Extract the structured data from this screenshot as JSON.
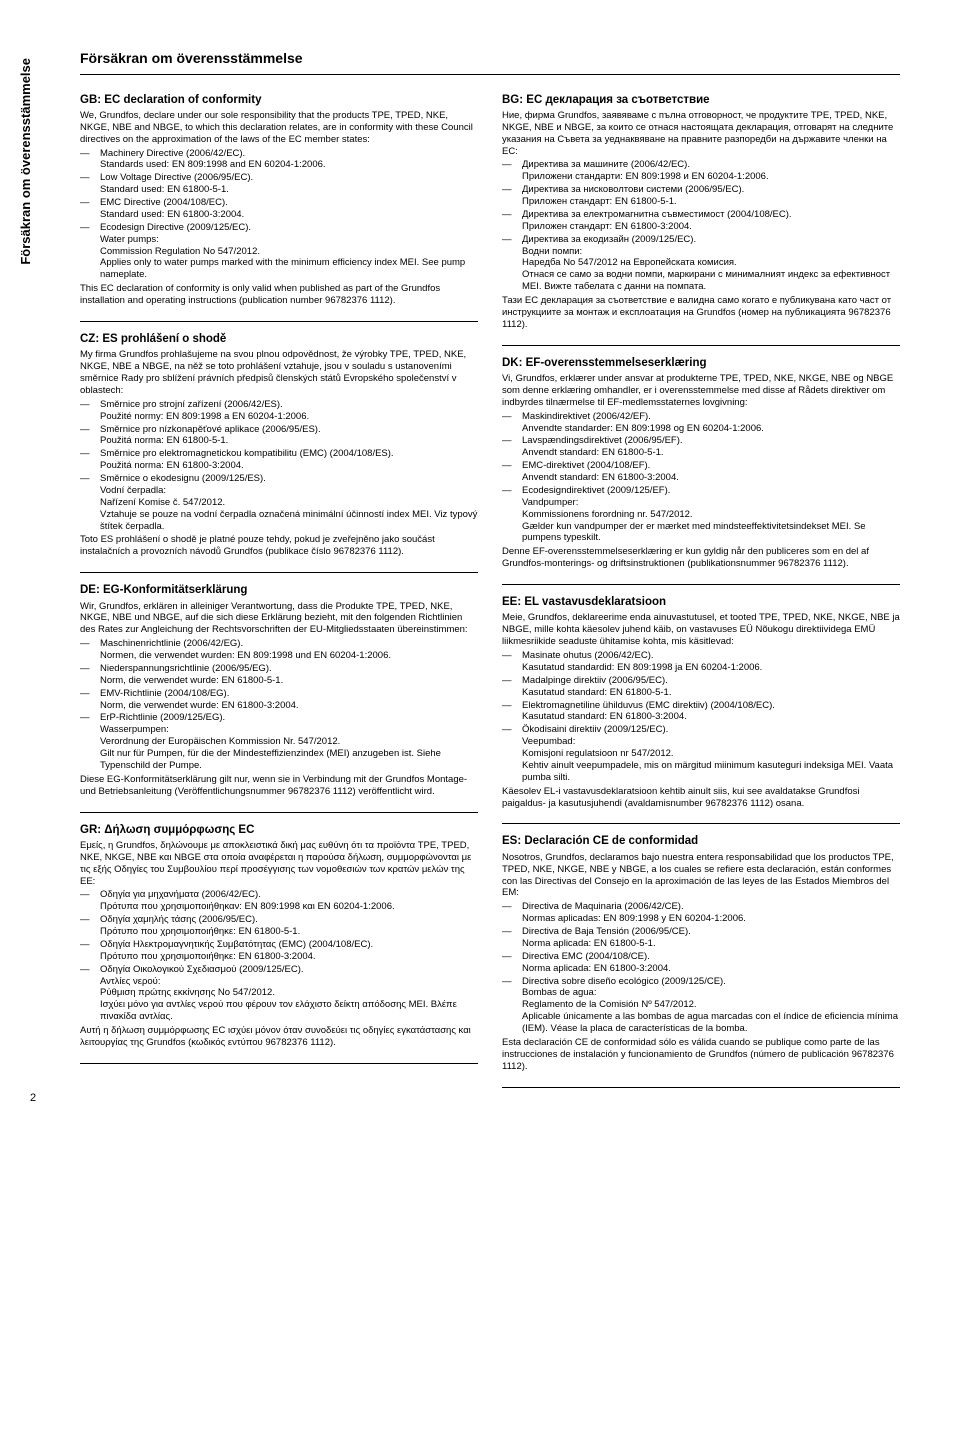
{
  "sidetab": "Försäkran om överensstämmelse",
  "page_title": "Försäkran om överensstämmelse",
  "page_number": "2",
  "left": [
    {
      "title": "GB: EC declaration of conformity",
      "intro": "We, Grundfos, declare under our sole responsibility that the products TPE, TPED, NKE, NKGE, NBE and NBGE, to which this declaration relates, are in conformity with these Council directives on the approximation of the laws of the EC member states:",
      "items": [
        {
          "main": "Machinery Directive (2006/42/EC).",
          "sub": "Standards used: EN 809:1998 and EN 60204-1:2006."
        },
        {
          "main": "Low Voltage Directive (2006/95/EC).",
          "sub": "Standard used: EN 61800-5-1."
        },
        {
          "main": "EMC Directive (2004/108/EC).",
          "sub": "Standard used: EN 61800-3:2004."
        },
        {
          "main": "Ecodesign Directive (2009/125/EC).",
          "sub": "Water pumps:\nCommission Regulation No 547/2012.\nApplies only to water pumps marked with the minimum efficiency index MEI. See pump nameplate."
        }
      ],
      "outro": "This EC declaration of conformity is only valid when published as part of the Grundfos installation and operating instructions (publication number 96782376 1112)."
    },
    {
      "title": "CZ: ES prohlášení o shodě",
      "intro": "My firma Grundfos prohlašujeme na svou plnou odpovědnost, že výrobky TPE, TPED, NKE, NKGE, NBE a NBGE, na něž se toto prohlášení vztahuje, jsou v souladu s ustanoveními směrnice Rady pro sblížení právních předpisů členských států Evropského společenství v oblastech:",
      "items": [
        {
          "main": "Směrnice pro strojní zařízení (2006/42/ES).",
          "sub": "Použité normy: EN 809:1998 a EN 60204-1:2006."
        },
        {
          "main": "Směrnice pro nízkonapěťové aplikace (2006/95/ES).",
          "sub": "Použitá norma: EN 61800-5-1."
        },
        {
          "main": "Směrnice pro elektromagnetickou kompatibilitu (EMC) (2004/108/ES).",
          "sub": "Použitá norma: EN 61800-3:2004."
        },
        {
          "main": "Směrnice o ekodesignu (2009/125/ES).",
          "sub": "Vodní čerpadla:\nNařízení Komise č. 547/2012.\nVztahuje se pouze na vodní čerpadla označená minimální účinností index MEI. Viz typový štítek čerpadla."
        }
      ],
      "outro": "Toto ES prohlášení o shodě je platné pouze tehdy, pokud je zveřejněno jako součást instalačních a provozních návodů Grundfos (publikace číslo 96782376 1112)."
    },
    {
      "title": "DE: EG-Konformitätserklärung",
      "intro": "Wir, Grundfos, erklären in alleiniger Verantwortung, dass die Produkte TPE, TPED, NKE, NKGE, NBE und NBGE, auf die sich diese Erklärung bezieht, mit den folgenden Richtlinien des Rates zur Angleichung der Rechtsvorschriften der EU-Mitgliedsstaaten übereinstimmen:",
      "items": [
        {
          "main": "Maschinenrichtlinie (2006/42/EG).",
          "sub": "Normen, die verwendet wurden: EN 809:1998 und EN 60204-1:2006."
        },
        {
          "main": "Niederspannungsrichtlinie (2006/95/EG).",
          "sub": "Norm, die verwendet wurde: EN 61800-5-1."
        },
        {
          "main": "EMV-Richtlinie (2004/108/EG).",
          "sub": "Norm, die verwendet wurde: EN 61800-3:2004."
        },
        {
          "main": "ErP-Richtlinie (2009/125/EG).",
          "sub": "Wasserpumpen:\nVerordnung der Europäischen Kommission Nr. 547/2012.\nGilt nur für Pumpen, für die der Mindesteffizienzindex (MEI) anzugeben ist. Siehe Typenschild der Pumpe."
        }
      ],
      "outro": "Diese EG-Konformitätserklärung gilt nur, wenn sie in Verbindung mit der Grundfos Montage- und Betriebsanleitung (Veröffentlichungsnummer 96782376 1112) veröffentlicht wird."
    },
    {
      "title": "GR: Δήλωση συμμόρφωσης EC",
      "intro": "Εμείς, η Grundfos, δηλώνουμε με αποκλειστικά δική μας ευθύνη ότι τα προϊόντα TPE, TPED, NKE, NKGE, NBE και NBGE στα οποία αναφέρεται η παρούσα δήλωση, συμμορφώνονται με τις εξής Οδηγίες του Συμβουλίου περί προσέγγισης των νομοθεσιών των κρατών μελών της ΕΕ:",
      "items": [
        {
          "main": "Οδηγία για μηχανήματα (2006/42/EC).",
          "sub": "Πρότυπα που χρησιμοποιήθηκαν: EN 809:1998 και EN 60204-1:2006."
        },
        {
          "main": "Οδηγία χαμηλής τάσης (2006/95/EC).",
          "sub": "Πρότυπο που χρησιμοποιήθηκε: EN 61800-5-1."
        },
        {
          "main": "Οδηγία Ηλεκτρομαγνητικής Συμβατότητας (EMC) (2004/108/EC).",
          "sub": "Πρότυπο που χρησιμοποιήθηκε: EN 61800-3:2004."
        },
        {
          "main": "Οδηγία Οικολογικού Σχεδιασμού (2009/125/ΕC).",
          "sub": "Αντλίες νερού:\nΡύθμιση πρώτης εκκίνησης Νο 547/2012.\nΙσχύει μόνο για αντλίες νερού που φέρουν τον ελάχιστο δείκτη απόδοσης ΜΕΙ. Βλέπε πινακίδα αντλίας."
        }
      ],
      "outro": "Αυτή η δήλωση συμμόρφωσης EC ισχύει μόνον όταν συνοδεύει τις οδηγίες εγκατάστασης και λειτουργίας της Grundfos (κωδικός εντύπου 96782376 1112)."
    }
  ],
  "right": [
    {
      "title": "BG: EC декларация за съответствие",
      "intro": "Ние, фирма Grundfos, заявяваме с пълна отговорност, че продуктите TPE, TPED, NKE, NKGE, NBE и NBGE, за които се отнася настоящата декларация, отговарят на следните указания на Съвета за уеднаквяване на правните разпоредби на държавите членки на ЕС:",
      "items": [
        {
          "main": "Директива за машините (2006/42/EC).",
          "sub": "Приложени стандарти: EN 809:1998 и EN 60204-1:2006."
        },
        {
          "main": "Директива за нисковолтови системи (2006/95/EC).",
          "sub": "Приложен стандарт: EN 61800-5-1."
        },
        {
          "main": "Директива за електромагнитна съвместимост (2004/108/EC).",
          "sub": "Приложен стандарт: EN 61800-3:2004."
        },
        {
          "main": "Директива за екодизайн (2009/125/EC).",
          "sub": "Водни помпи:\nНаредба No 547/2012 на Европейската комисия.\nОтнася се само за водни помпи, маркирани с минималният индекс за ефективност MEI. Вижте табелата с данни на помпата."
        }
      ],
      "outro": "Тази ЕС декларация за съответствие е валидна само когато е публикувана като част от инструкциите за монтаж и експлоатация на Grundfos (номер на публикацията 96782376 1112)."
    },
    {
      "title": "DK: EF-overensstemmelseserklæring",
      "intro": "Vi, Grundfos, erklærer under ansvar at produkterne TPE, TPED, NKE, NKGE, NBE og NBGE som denne erklæring omhandler, er i overensstemmelse med disse af Rådets direktiver om indbyrdes tilnærmelse til EF-medlemsstaternes lovgivning:",
      "items": [
        {
          "main": "Maskindirektivet (2006/42/EF).",
          "sub": "Anvendte standarder: EN 809:1998 og EN 60204-1:2006."
        },
        {
          "main": "Lavspændingsdirektivet (2006/95/EF).",
          "sub": "Anvendt standard: EN 61800-5-1."
        },
        {
          "main": "EMC-direktivet (2004/108/EF).",
          "sub": "Anvendt standard: EN 61800-3:2004."
        },
        {
          "main": "Ecodesigndirektivet (2009/125/EF).",
          "sub": "Vandpumper:\nKommissionens forordning nr. 547/2012.\nGælder kun vandpumper der er mærket med mindsteeffektivitetsindekset MEI. Se pumpens typeskilt."
        }
      ],
      "outro": "Denne EF-overensstemmelseserklæring er kun gyldig når den publiceres som en del af Grundfos-monterings- og driftsinstruktionen (publikationsnummer 96782376 1112)."
    },
    {
      "title": "EE: EL vastavusdeklaratsioon",
      "intro": "Meie, Grundfos, deklareerime enda ainuvastutusel, et tooted TPE, TPED, NKE, NKGE, NBE ja NBGE, mille kohta käesolev juhend käib, on vastavuses EÜ Nõukogu direktiividega EMÜ liikmesriikide seaduste ühitamise kohta, mis käsitlevad:",
      "items": [
        {
          "main": "Masinate ohutus (2006/42/EC).",
          "sub": "Kasutatud standardid: EN 809:1998 ja EN 60204-1:2006."
        },
        {
          "main": "Madalpinge direktiiv (2006/95/EC).",
          "sub": "Kasutatud standard: EN 61800-5-1."
        },
        {
          "main": "Elektromagnetiline ühilduvus (EMC direktiiv) (2004/108/EC).",
          "sub": "Kasutatud standard: EN 61800-3:2004."
        },
        {
          "main": "Ökodisaini direktiiv (2009/125/EC).",
          "sub": "Veepumbad:\nKomisjoni regulatsioon nr 547/2012.\nKehtiv ainult veepumpadele, mis on märgitud miinimum kasuteguri indeksiga MEI. Vaata pumba silti."
        }
      ],
      "outro": "Käesolev EL-i vastavusdeklaratsioon kehtib ainult siis, kui see avaldatakse Grundfosi paigaldus- ja kasutusjuhendi (avaldamisnumber 96782376 1112) osana."
    },
    {
      "title": "ES: Declaración CE de conformidad",
      "intro": "Nosotros, Grundfos, declaramos bajo nuestra entera responsabilidad que los productos TPE, TPED, NKE, NKGE, NBE y NBGE, a los cuales se refiere esta declaración, están conformes con las Directivas del Consejo en la aproximación de las leyes de las Estados Miembros del EM:",
      "items": [
        {
          "main": "Directiva de Maquinaria (2006/42/CE).",
          "sub": "Normas aplicadas: EN 809:1998 y EN 60204-1:2006."
        },
        {
          "main": "Directiva de Baja Tensión (2006/95/CE).",
          "sub": "Norma aplicada: EN 61800-5-1."
        },
        {
          "main": "Directiva EMC (2004/108/CE).",
          "sub": "Norma aplicada: EN 61800-3:2004."
        },
        {
          "main": "Directiva sobre diseño ecológico (2009/125/CE).",
          "sub": "Bombas de agua:\nReglamento de la Comisión Nº 547/2012.\nAplicable únicamente a las bombas de agua marcadas con el índice de eficiencia mínima (IEM). Véase la placa de características de la bomba."
        }
      ],
      "outro": "Esta declaración CE de conformidad sólo es válida cuando se publique como parte de las instrucciones de instalación y funcionamiento de Grundfos (número de publicación 96782376 1112)."
    }
  ]
}
